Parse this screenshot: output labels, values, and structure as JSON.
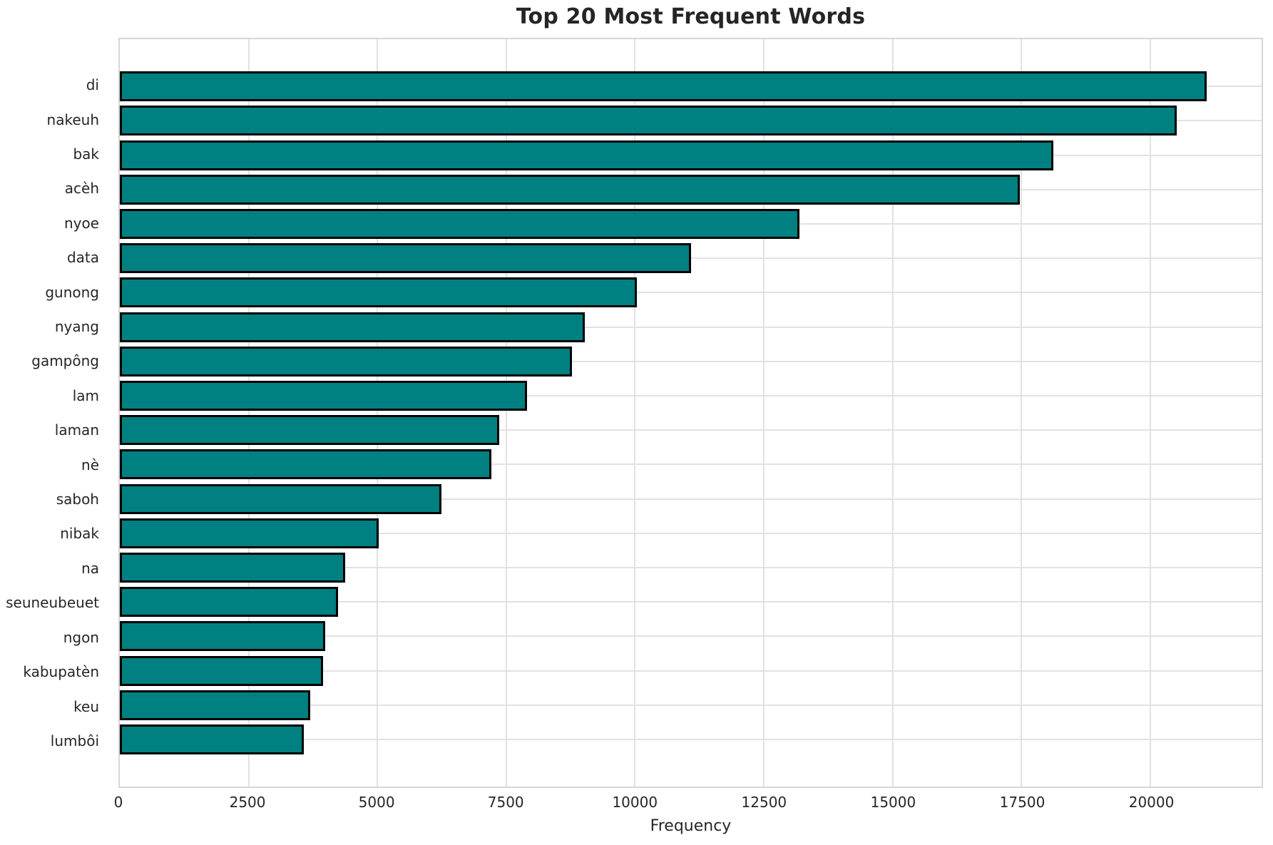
{
  "chart_data": {
    "type": "bar",
    "orientation": "horizontal",
    "title": "Top 20 Most Frequent Words",
    "xlabel": "Frequency",
    "ylabel": "",
    "categories": [
      "di",
      "nakeuh",
      "bak",
      "acèh",
      "nyoe",
      "data",
      "gunong",
      "nyang",
      "gampông",
      "lam",
      "laman",
      "nè",
      "saboh",
      "nibak",
      "na",
      "seuneubeuet",
      "ngon",
      "kabupatèn",
      "keu",
      "lumbôi"
    ],
    "values": [
      21100,
      20510,
      18120,
      17470,
      13190,
      11080,
      10030,
      9030,
      8770,
      7910,
      7360,
      7210,
      6240,
      5030,
      4380,
      4230,
      3980,
      3950,
      3700,
      3570
    ],
    "xticks": [
      0,
      2500,
      5000,
      7500,
      10000,
      12500,
      15000,
      17500,
      20000
    ],
    "xtick_labels": [
      "0",
      "2500",
      "5000",
      "7500",
      "10000",
      "12500",
      "15000",
      "17500",
      "20000"
    ],
    "xlim": [
      0,
      22160
    ],
    "grid": true,
    "legend": null,
    "bar_color": "#008080",
    "bar_edge_color": "#000000",
    "grid_color": "#e2e2e2",
    "spine_color": "#d6d6d6",
    "text_color": "#262626"
  }
}
